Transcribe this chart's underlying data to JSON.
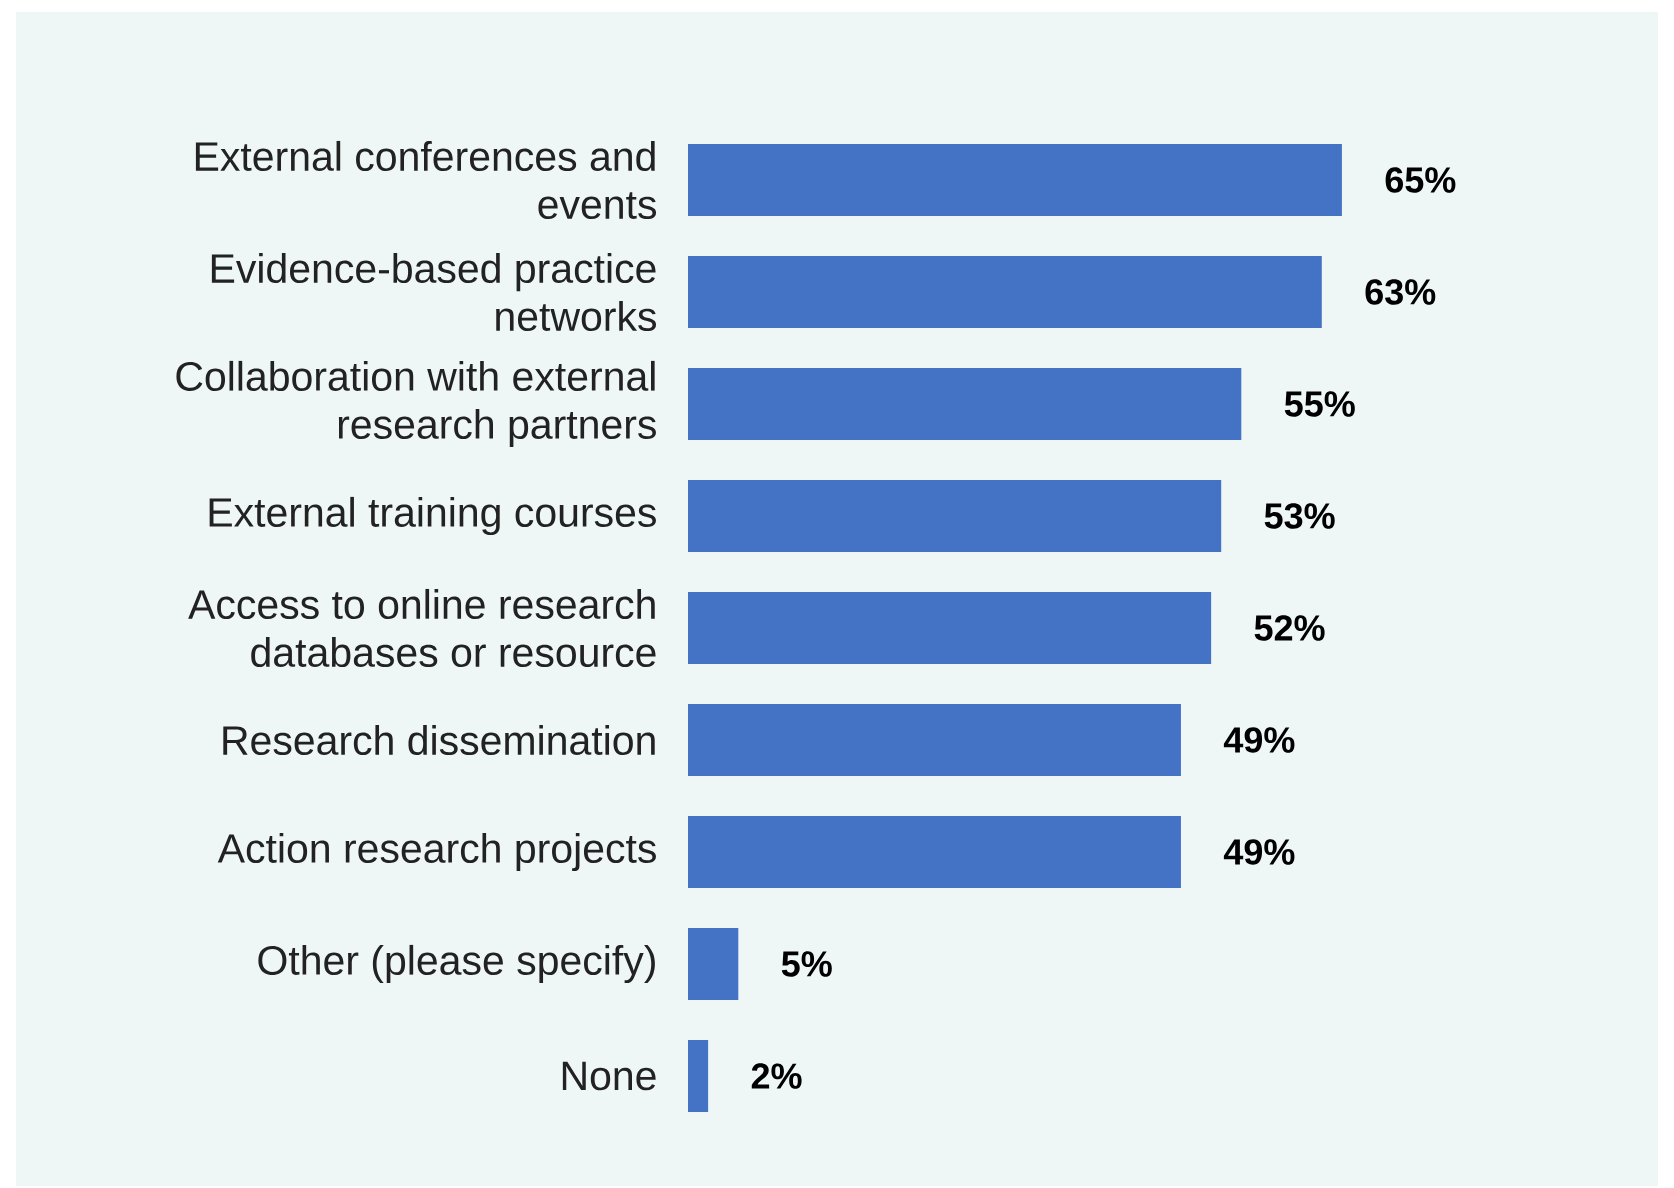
{
  "chart_data": {
    "type": "bar",
    "orientation": "horizontal",
    "categories": [
      "External conferences and events",
      "Evidence-based practice networks",
      "Collaboration with external research partners",
      "External training courses",
      "Access to online research databases or resource",
      "Research dissemination",
      "Action research projects",
      "Other (please specify)",
      "None"
    ],
    "values": [
      65,
      63,
      55,
      53,
      52,
      49,
      49,
      5,
      2
    ],
    "value_labels": [
      "65%",
      "63%",
      "55%",
      "53%",
      "52%",
      "49%",
      "49%",
      "5%",
      "2%"
    ],
    "color": "#4472c4"
  }
}
